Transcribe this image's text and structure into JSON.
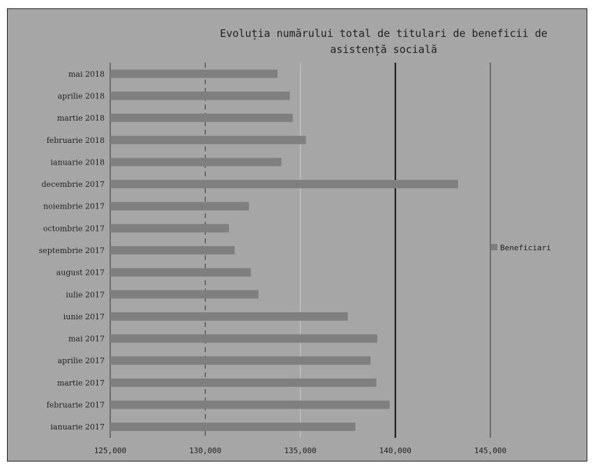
{
  "chart_data": {
    "type": "bar",
    "orientation": "horizontal",
    "title_line1": "Evoluția numărului total de titulari de beneficii de",
    "title_line2": "asistență socială",
    "categories": [
      "mai 2018",
      "aprilie 2018",
      "martie 2018",
      "februarie 2018",
      "ianuarie 2018",
      "decembrie 2017",
      "noiembrie 2017",
      "octombrie 2017",
      "septembrie 2017",
      "august 2017",
      "iulie 2017",
      "iunie 2017",
      "mai 2017",
      "aprilie 2017",
      "martie 2017",
      "februarie 2017",
      "ianuarie 2017"
    ],
    "series": [
      {
        "name": "Beneficiari",
        "color": "#7f7f7f",
        "values": [
          133800,
          134450,
          134600,
          135300,
          134000,
          143300,
          132300,
          131250,
          131550,
          132400,
          132800,
          137500,
          139050,
          138700,
          139000,
          139700,
          137900
        ]
      }
    ],
    "xlim": [
      125000,
      145000
    ],
    "x_ticks": [
      "125,000",
      "130,000",
      "135,000",
      "140,000",
      "145,000"
    ],
    "x_tick_values": [
      125000,
      130000,
      135000,
      140000,
      145000
    ],
    "legend_position": "right"
  }
}
